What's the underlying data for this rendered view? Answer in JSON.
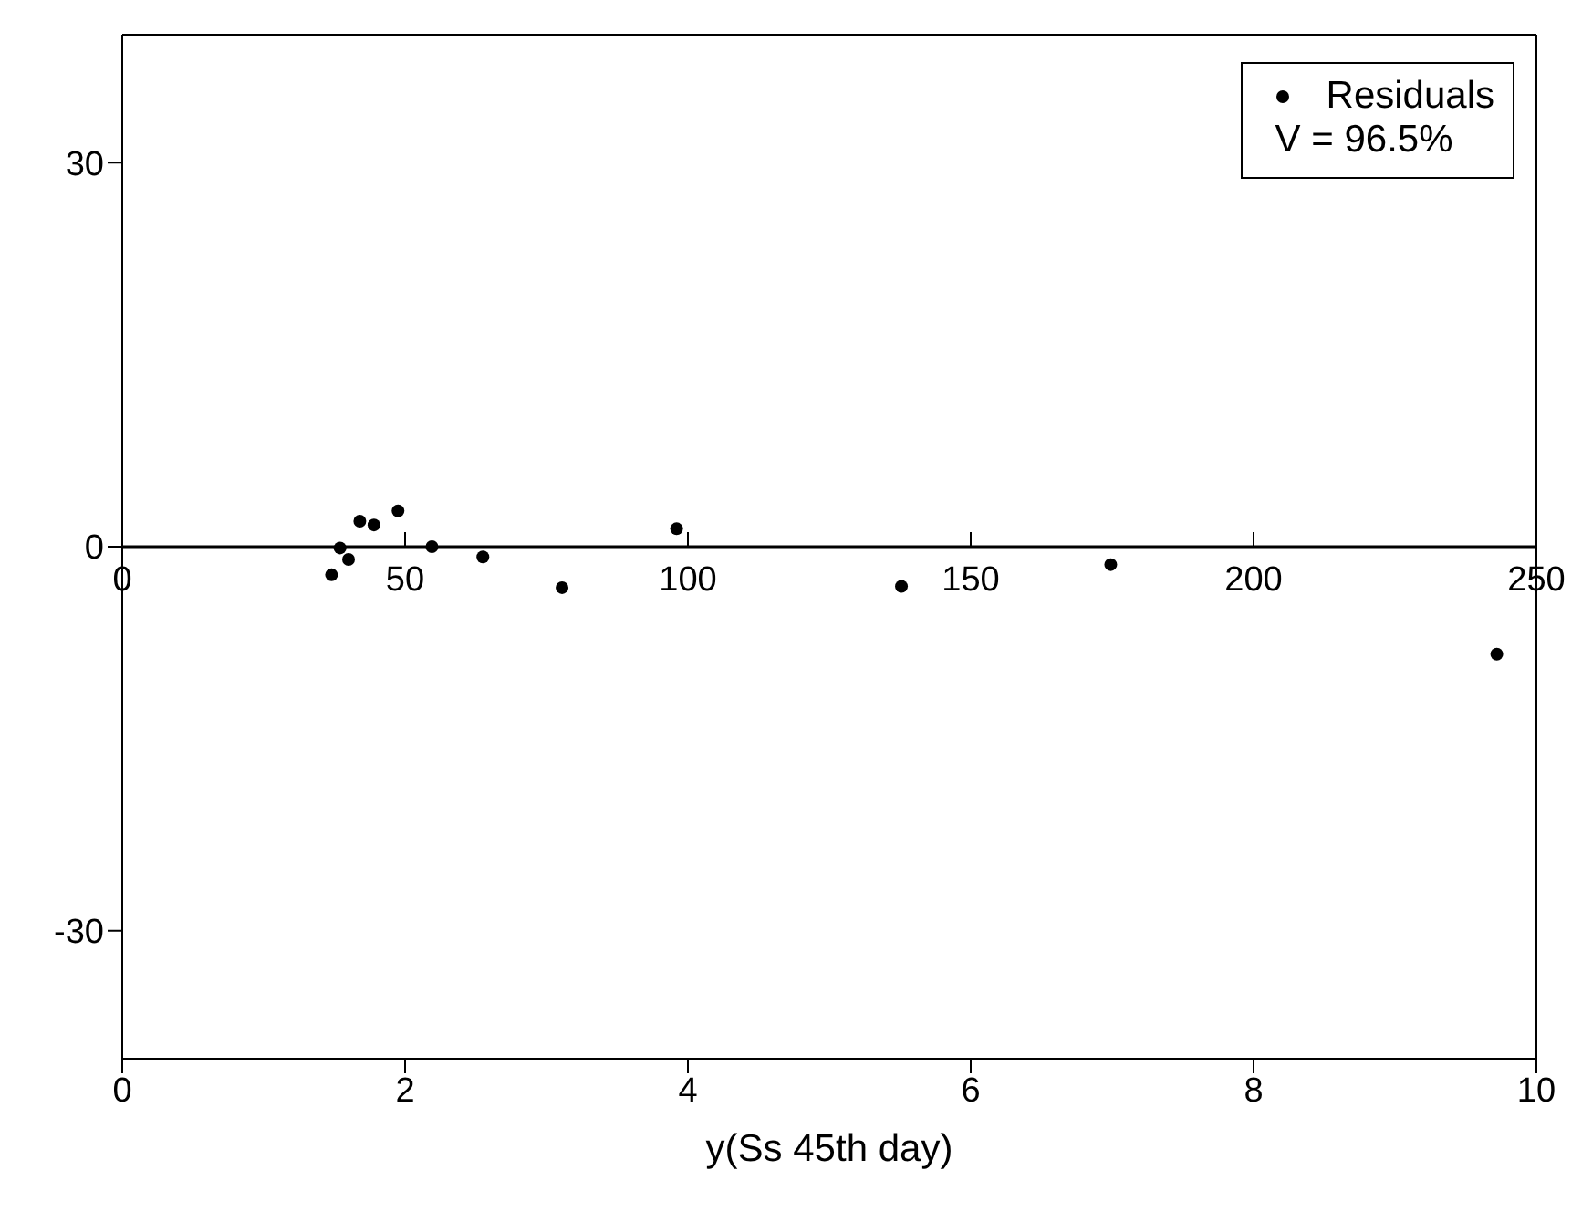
{
  "chart_data": {
    "type": "scatter",
    "xlabel": "y(Ss 45th day)",
    "x": [
      1.48,
      1.54,
      1.6,
      1.68,
      1.78,
      1.95,
      2.19,
      2.55,
      3.11,
      3.92,
      5.51,
      6.99,
      9.72
    ],
    "series": [
      {
        "name": "Residuals",
        "color": "#000000",
        "values": [
          -2.2,
          -0.1,
          -1.0,
          2.0,
          1.7,
          2.8,
          0.0,
          -0.8,
          -3.2,
          1.4,
          -3.1,
          -1.4,
          -8.4
        ]
      }
    ],
    "xlim": [
      0,
      10
    ],
    "xticks": [
      0,
      2,
      4,
      6,
      8,
      10
    ],
    "x2lim": [
      0,
      250
    ],
    "x2ticks": [
      0,
      50,
      100,
      150,
      200,
      250
    ],
    "ylim": [
      -40,
      40
    ],
    "yticks": [
      -30,
      0,
      30
    ],
    "annotations": [
      "V = 96.5%"
    ],
    "marker": "circle",
    "grid": false,
    "legend": "top right"
  }
}
